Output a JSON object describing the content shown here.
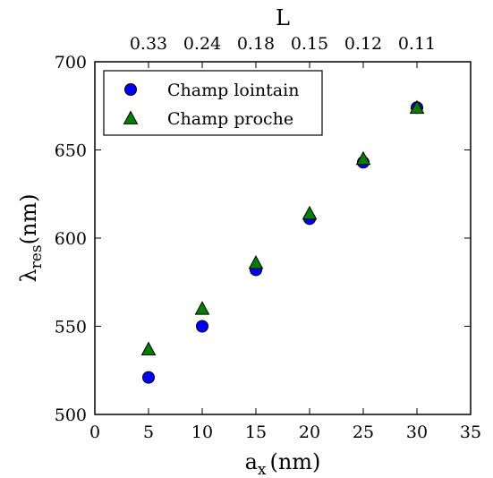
{
  "chart_data": {
    "type": "scatter",
    "xlabel_base": "a",
    "xlabel_sub": "x",
    "xlabel_unit": "(nm)",
    "ylabel_base": "λ",
    "ylabel_sub": "res",
    "ylabel_unit": "(nm)",
    "top_xlabel": "L",
    "xlim": [
      0,
      35
    ],
    "ylim": [
      500,
      700
    ],
    "xticks": [
      0,
      5,
      10,
      15,
      20,
      25,
      30,
      35
    ],
    "yticks": [
      500,
      550,
      600,
      650,
      700
    ],
    "top_xticks": [
      {
        "x": 5,
        "label": "0.33"
      },
      {
        "x": 10,
        "label": "0.24"
      },
      {
        "x": 15,
        "label": "0.18"
      },
      {
        "x": 20,
        "label": "0.15"
      },
      {
        "x": 25,
        "label": "0.12"
      },
      {
        "x": 30,
        "label": "0.11"
      }
    ],
    "grid": false,
    "legend_position": "top-left",
    "series": [
      {
        "name": "Champ lointain",
        "marker": "circle",
        "color": "#0000ff",
        "x": [
          5,
          10,
          15,
          20,
          25,
          30
        ],
        "y": [
          521,
          550,
          582,
          611,
          643,
          674
        ]
      },
      {
        "name": "Champ proche",
        "marker": "triangle",
        "color": "#008000",
        "x": [
          5,
          10,
          15,
          20,
          25,
          30
        ],
        "y": [
          537,
          560,
          586,
          614,
          645,
          674
        ]
      }
    ]
  }
}
